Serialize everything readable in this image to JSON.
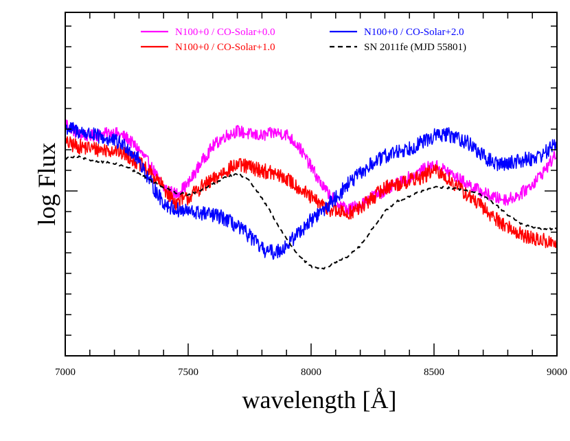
{
  "chart_data": {
    "type": "line",
    "xlabel": "wavelength [Å]",
    "ylabel": "log Flux",
    "xlim": [
      7000,
      9000
    ],
    "ylim": [
      0,
      10
    ],
    "x_ticks": [
      7000,
      7500,
      8000,
      8500,
      9000
    ],
    "x_tick_labels": [
      "7000",
      "7500",
      "8000",
      "8500",
      "9000"
    ],
    "y_tick_labels": [],
    "grid": false,
    "legend_position": "top",
    "series": [
      {
        "name": "N100+0 / CO-Solar+0.0",
        "color": "#ff00ff",
        "style": "solid",
        "noise": 0.18,
        "x": [
          7000,
          7050,
          7100,
          7150,
          7200,
          7250,
          7300,
          7350,
          7400,
          7450,
          7500,
          7550,
          7600,
          7650,
          7700,
          7750,
          7800,
          7850,
          7900,
          7950,
          8000,
          8050,
          8100,
          8150,
          8200,
          8250,
          8300,
          8350,
          8400,
          8450,
          8500,
          8550,
          8600,
          8650,
          8700,
          8750,
          8800,
          8850,
          8900,
          8950,
          9000
        ],
        "y": [
          6.8,
          6.45,
          6.4,
          6.45,
          6.5,
          6.35,
          6.0,
          5.5,
          4.9,
          4.7,
          5.0,
          5.6,
          6.1,
          6.4,
          6.55,
          6.45,
          6.4,
          6.5,
          6.45,
          6.1,
          5.5,
          4.9,
          4.5,
          4.25,
          4.4,
          4.65,
          4.8,
          5.0,
          5.2,
          5.4,
          5.55,
          5.4,
          5.15,
          4.95,
          4.75,
          4.6,
          4.55,
          4.7,
          5.0,
          5.4,
          5.9
        ]
      },
      {
        "name": "N100+0 / CO-Solar+1.0",
        "color": "#ff0000",
        "style": "solid",
        "noise": 0.22,
        "x": [
          7000,
          7050,
          7100,
          7150,
          7200,
          7250,
          7300,
          7350,
          7400,
          7450,
          7500,
          7550,
          7600,
          7650,
          7700,
          7750,
          7800,
          7850,
          7900,
          7950,
          8000,
          8050,
          8100,
          8150,
          8200,
          8250,
          8300,
          8350,
          8400,
          8450,
          8500,
          8550,
          8600,
          8650,
          8700,
          8750,
          8800,
          8850,
          8900,
          8950,
          9000
        ],
        "y": [
          6.2,
          6.1,
          6.05,
          6.0,
          6.0,
          5.85,
          5.6,
          5.3,
          4.9,
          4.45,
          4.6,
          4.9,
          5.1,
          5.4,
          5.55,
          5.5,
          5.4,
          5.3,
          5.15,
          4.9,
          4.6,
          4.35,
          4.2,
          4.15,
          4.3,
          4.6,
          4.9,
          5.0,
          5.1,
          5.2,
          5.4,
          5.2,
          4.9,
          4.6,
          4.3,
          4.0,
          3.75,
          3.55,
          3.4,
          3.35,
          3.25
        ]
      },
      {
        "name": "N100+0 / CO-Solar+2.0",
        "color": "#0000ff",
        "style": "solid",
        "noise": 0.22,
        "x": [
          7000,
          7050,
          7100,
          7150,
          7200,
          7250,
          7300,
          7350,
          7400,
          7450,
          7500,
          7550,
          7600,
          7650,
          7700,
          7750,
          7800,
          7850,
          7900,
          7950,
          8000,
          8050,
          8100,
          8150,
          8200,
          8250,
          8300,
          8350,
          8400,
          8450,
          8500,
          8550,
          8600,
          8650,
          8700,
          8750,
          8800,
          8850,
          8900,
          8950,
          9000
        ],
        "y": [
          6.65,
          6.55,
          6.45,
          6.35,
          6.25,
          6.1,
          5.7,
          5.0,
          4.45,
          4.25,
          4.2,
          4.15,
          4.1,
          4.0,
          3.75,
          3.5,
          3.1,
          3.0,
          3.2,
          3.6,
          3.95,
          4.25,
          4.6,
          5.0,
          5.3,
          5.6,
          5.8,
          5.95,
          6.05,
          6.2,
          6.4,
          6.45,
          6.35,
          6.15,
          5.8,
          5.6,
          5.6,
          5.7,
          5.75,
          5.9,
          6.2
        ]
      },
      {
        "name": "SN 2011fe (MJD 55801)",
        "color": "#000000",
        "style": "dashed",
        "noise": 0.03,
        "x": [
          7000,
          7050,
          7100,
          7150,
          7200,
          7250,
          7300,
          7350,
          7400,
          7450,
          7500,
          7550,
          7600,
          7650,
          7700,
          7750,
          7800,
          7850,
          7900,
          7950,
          8000,
          8050,
          8100,
          8150,
          8200,
          8250,
          8300,
          8350,
          8400,
          8450,
          8500,
          8550,
          8600,
          8650,
          8700,
          8750,
          8800,
          8850,
          8900,
          8950,
          9000
        ],
        "y": [
          5.75,
          5.8,
          5.7,
          5.65,
          5.6,
          5.5,
          5.3,
          5.1,
          4.9,
          4.75,
          4.7,
          4.8,
          5.0,
          5.2,
          5.3,
          5.1,
          4.6,
          4.0,
          3.4,
          2.9,
          2.6,
          2.55,
          2.7,
          2.9,
          3.2,
          3.7,
          4.2,
          4.5,
          4.65,
          4.8,
          4.9,
          4.9,
          4.85,
          4.8,
          4.65,
          4.4,
          4.1,
          3.85,
          3.75,
          3.7,
          3.7
        ]
      }
    ]
  }
}
